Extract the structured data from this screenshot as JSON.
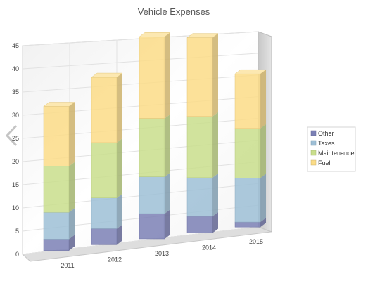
{
  "chart_data": {
    "type": "bar",
    "stacked": true,
    "three_d": true,
    "title": "Vehicle Expenses",
    "categories": [
      "2011",
      "2012",
      "2013",
      "2014",
      "2015"
    ],
    "series": [
      {
        "name": "Other",
        "color": "#7b80b5",
        "values": [
          2.4,
          3.4,
          5.4,
          3.6,
          1.1
        ]
      },
      {
        "name": "Taxes",
        "color": "#9ebfd6",
        "values": [
          5.6,
          6.5,
          7.9,
          8.4,
          9.7
        ]
      },
      {
        "name": "Maintenance",
        "color": "#c9de8c",
        "values": [
          9.6,
          11.7,
          12.5,
          13.3,
          10.9
        ]
      },
      {
        "name": "Fuel",
        "color": "#fbdc87",
        "values": [
          12.5,
          13.8,
          17.5,
          17.1,
          12.0
        ]
      }
    ],
    "y_ticks": [
      "0",
      "5",
      "10",
      "15",
      "20",
      "25",
      "30",
      "35",
      "40",
      "45"
    ],
    "ylim": [
      0,
      45
    ],
    "grid": true,
    "legend_position": "right"
  },
  "nav": {
    "icon": "chevron-left-icon"
  }
}
